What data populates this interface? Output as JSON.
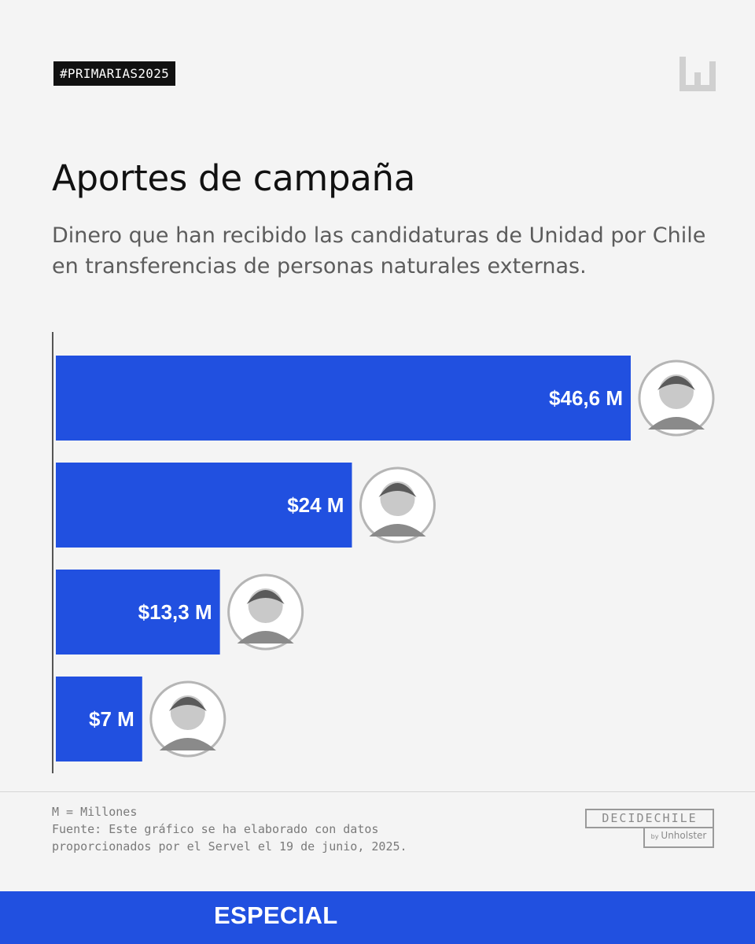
{
  "header": {
    "hashtag": "#PRIMARIAS2025",
    "logo_icon": "unholster-bars-logo"
  },
  "title": "Aportes de campaña",
  "subtitle": "Dinero que han recibido las candidaturas de Unidad por Chile en transferencias de personas naturales externas.",
  "chart_data": {
    "type": "bar",
    "orientation": "horizontal",
    "title": "Aportes de campaña",
    "categories": [
      "",
      "",
      "",
      ""
    ],
    "values": [
      46.6,
      24,
      13.3,
      7
    ],
    "value_labels": [
      "$46,6 M",
      "$24 M",
      "$13,3 M",
      "$7 M"
    ],
    "unit": "M = Millones",
    "xlim": [
      0,
      50
    ],
    "grid": false,
    "legend": "none",
    "bar_color": "#2150e0",
    "label_color": "#ffffff",
    "avatar_icons": [
      "candidate-photo-1",
      "candidate-photo-2",
      "candidate-photo-3",
      "candidate-photo-4"
    ]
  },
  "notes": {
    "units": "M = Millones",
    "source_line1": "Fuente: Este gráfico se ha elaborado con datos",
    "source_line2": "proporcionados por el Servel el 19 de junio, 2025."
  },
  "brand": {
    "name": "DECIDECHILE",
    "by": "by",
    "company": "Unholster"
  },
  "footer": {
    "label": "ESPECIAL"
  },
  "colors": {
    "background": "#f4f4f4",
    "accent": "#2150e0",
    "text": "#111111",
    "muted": "#5c5c5c"
  }
}
